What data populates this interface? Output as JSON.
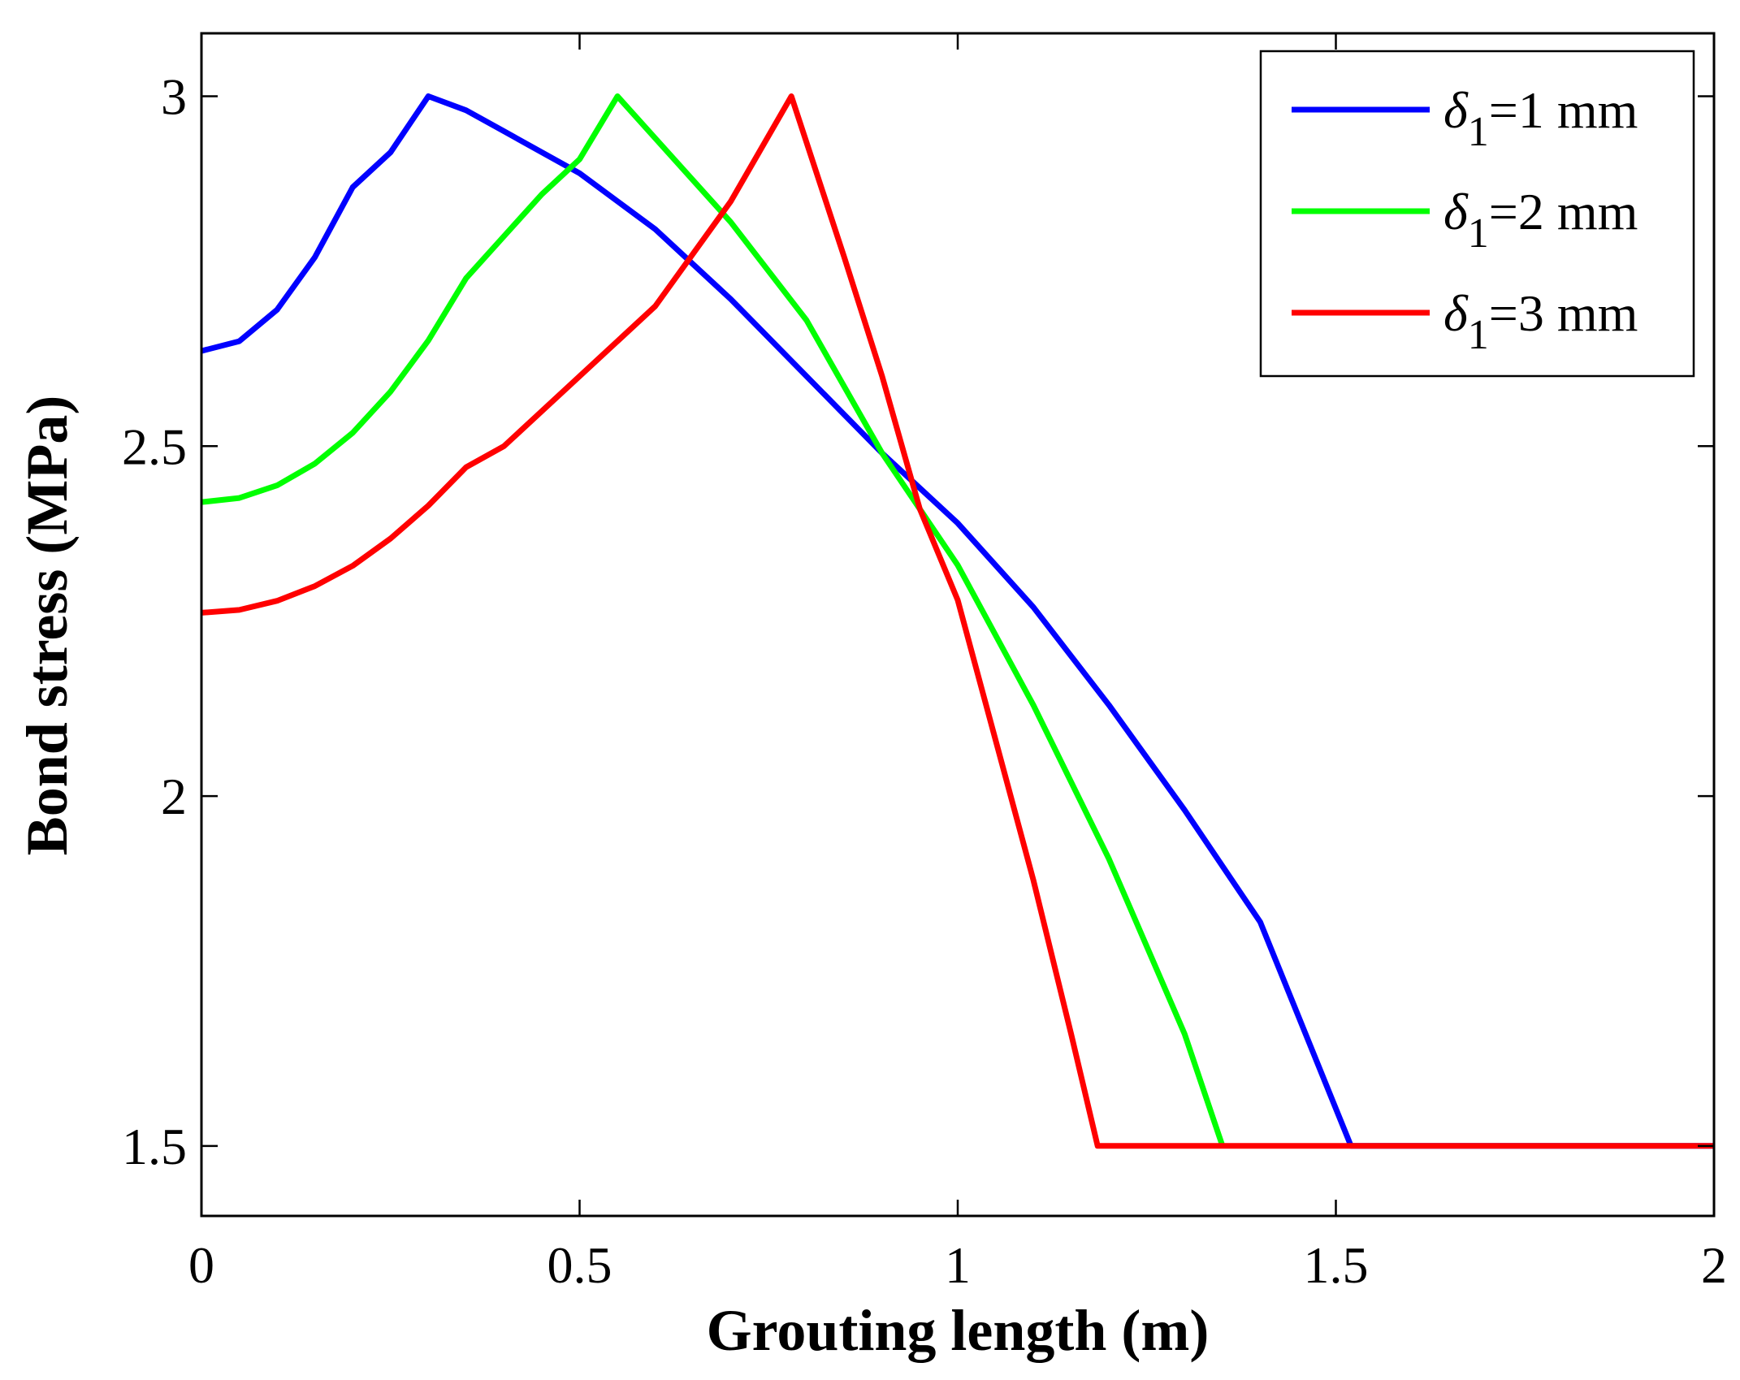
{
  "chart_data": {
    "type": "line",
    "title": "",
    "xlabel": "Grouting length (m)",
    "ylabel": "Bond stress (MPa)",
    "xlim": [
      0,
      2
    ],
    "ylim": [
      1.4,
      3.09
    ],
    "xticks": [
      0,
      0.5,
      1,
      1.5,
      2
    ],
    "yticks": [
      1.5,
      2,
      2.5,
      3
    ],
    "xtick_labels": [
      "0",
      "0.5",
      "1",
      "1.5",
      "2"
    ],
    "ytick_labels": [
      "1.5",
      "2",
      "2.5",
      "3"
    ],
    "grid": false,
    "legend_position": "top-right",
    "series": [
      {
        "name": "δ1=1 mm",
        "legend_symbol": "δ",
        "legend_subscript": "1",
        "legend_value": "=1 mm",
        "color": "#0000ff",
        "x": [
          0,
          0.05,
          0.1,
          0.15,
          0.2,
          0.25,
          0.3,
          0.35,
          0.4,
          0.5,
          0.6,
          0.7,
          0.8,
          0.9,
          1.0,
          1.1,
          1.2,
          1.3,
          1.4,
          1.52,
          2.0
        ],
        "y": [
          2.636,
          2.65,
          2.695,
          2.77,
          2.87,
          2.92,
          3.0,
          2.98,
          2.95,
          2.89,
          2.81,
          2.71,
          2.6,
          2.49,
          2.39,
          2.27,
          2.13,
          1.98,
          1.82,
          1.5,
          1.5
        ]
      },
      {
        "name": "δ1=2 mm",
        "legend_symbol": "δ",
        "legend_subscript": "1",
        "legend_value": "=2 mm",
        "color": "#00ff00",
        "x": [
          0,
          0.05,
          0.1,
          0.15,
          0.2,
          0.25,
          0.3,
          0.35,
          0.4,
          0.45,
          0.5,
          0.55,
          0.6,
          0.7,
          0.8,
          0.9,
          1.0,
          1.1,
          1.2,
          1.3,
          1.35
        ],
        "y": [
          2.42,
          2.426,
          2.444,
          2.475,
          2.519,
          2.578,
          2.651,
          2.74,
          2.8,
          2.86,
          2.91,
          3.0,
          2.94,
          2.82,
          2.68,
          2.49,
          2.33,
          2.13,
          1.91,
          1.66,
          1.5
        ]
      },
      {
        "name": "δ1=3 mm",
        "legend_symbol": "δ",
        "legend_subscript": "1",
        "legend_value": "=3 mm",
        "color": "#ff0000",
        "x": [
          0,
          0.05,
          0.1,
          0.15,
          0.2,
          0.25,
          0.3,
          0.35,
          0.4,
          0.5,
          0.6,
          0.7,
          0.78,
          0.85,
          0.9,
          0.95,
          1.0,
          1.05,
          1.1,
          1.15,
          1.185,
          2.0
        ],
        "y": [
          2.262,
          2.266,
          2.279,
          2.3,
          2.329,
          2.368,
          2.415,
          2.47,
          2.5,
          2.6,
          2.7,
          2.85,
          3.0,
          2.77,
          2.6,
          2.41,
          2.28,
          2.08,
          1.88,
          1.66,
          1.5,
          1.5
        ]
      }
    ]
  }
}
